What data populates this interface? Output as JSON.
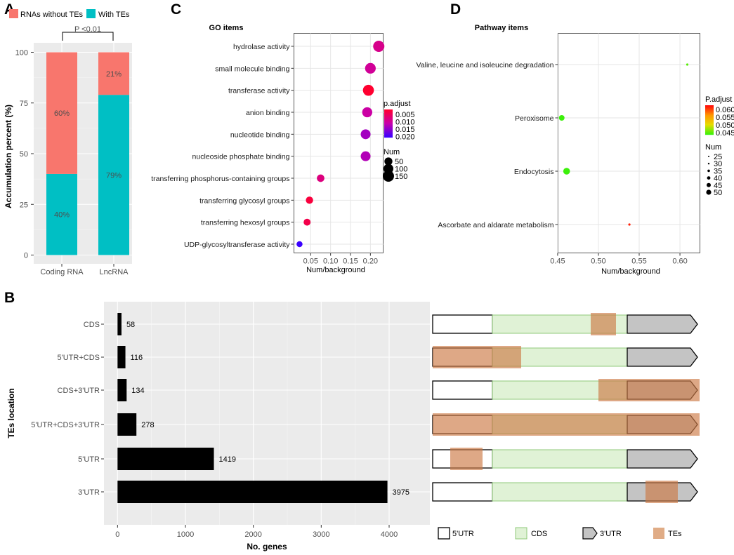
{
  "panels": {
    "a": "A",
    "b": "B",
    "c": "C",
    "d": "D"
  },
  "colors": {
    "no_te": "#f8766d",
    "te": "#00bfc4",
    "cds_fill": "#e0f2d6",
    "cds_stroke": "#8fc97a",
    "utr3_fill": "#c4c4c4",
    "te_rect": "#d48a5a"
  },
  "chart_data": [
    {
      "id": "A",
      "type": "bar",
      "stacked": true,
      "categories": [
        "Coding RNA",
        "LncRNA"
      ],
      "series": [
        {
          "name": "With TEs",
          "values": [
            40,
            79
          ],
          "labels": [
            "40%",
            "79%"
          ]
        },
        {
          "name": "RNAs without TEs",
          "values": [
            60,
            21
          ],
          "labels": [
            "60%",
            "21%"
          ]
        }
      ],
      "legend": [
        "RNAs without TEs",
        "With TEs"
      ],
      "ylabel": "Accumulation percent (%)",
      "ylim": [
        0,
        100
      ],
      "yticks": [
        "0",
        "25",
        "50",
        "75",
        "100"
      ],
      "annotation": "P <0.01"
    },
    {
      "id": "C",
      "type": "scatter",
      "title": "GO items",
      "xlabel": "Num/background",
      "xticks": [
        "0.05",
        "0.10",
        "0.15",
        "0.20"
      ],
      "xlim": [
        0.008,
        0.232
      ],
      "items": [
        "hydrolase activity",
        "small molecule binding",
        "transferase activity",
        "anion binding",
        "nucleotide binding",
        "nucleoside phosphate binding",
        "transferring phosphorus-containing groups",
        "transferring glycosyl groups",
        "transferring hexosyl groups",
        "UDP-glycosyltransferase activity"
      ],
      "x": [
        0.221,
        0.2,
        0.195,
        0.192,
        0.188,
        0.188,
        0.075,
        0.047,
        0.041,
        0.022
      ],
      "num": [
        150,
        128,
        140,
        108,
        100,
        100,
        40,
        35,
        30,
        15
      ],
      "padj": [
        0.0095,
        0.0105,
        0.0025,
        0.0115,
        0.0145,
        0.0135,
        0.0085,
        0.0035,
        0.0045,
        0.0215
      ],
      "color_title": "p.adjust",
      "color_ticks": [
        "0.005",
        "0.010",
        "0.015",
        "0.020"
      ],
      "size_title": "Num",
      "size_ticks": [
        "50",
        "100",
        "150"
      ]
    },
    {
      "id": "D",
      "type": "scatter",
      "title": "Pathway items",
      "xlabel": "Num/background",
      "xticks": [
        "0.45",
        "0.50",
        "0.55",
        "0.60"
      ],
      "xlim": [
        0.4505,
        0.6245
      ],
      "items": [
        "Valine, leucine and isoleucine degradation",
        "Peroxisome",
        "Endocytosis",
        "Ascorbate and aldarate metabolism"
      ],
      "x": [
        0.609,
        0.455,
        0.461,
        0.538
      ],
      "num": [
        25,
        45,
        50,
        27
      ],
      "padj": [
        0.044,
        0.043,
        0.043,
        0.061
      ],
      "color_title": "P.adjust",
      "color_ticks": [
        "0.060",
        "0.055",
        "0.050",
        "0.045"
      ],
      "size_title": "Num",
      "size_ticks": [
        "25",
        "30",
        "35",
        "40",
        "45",
        "50"
      ]
    },
    {
      "id": "B",
      "type": "bar",
      "orientation": "horizontal",
      "categories": [
        "CDS",
        "5'UTR+CDS",
        "CDS+3'UTR",
        "5'UTR+CDS+3'UTR",
        "5'UTR",
        "3'UTR"
      ],
      "values": [
        58,
        116,
        134,
        278,
        1419,
        3975
      ],
      "labels": [
        "58",
        "116",
        "134",
        "278",
        "1419",
        "3975"
      ],
      "xlabel": "No. genes",
      "ylabel": "TEs location",
      "xlim": [
        -200,
        4600
      ],
      "xticks": [
        "0",
        "1000",
        "2000",
        "3000",
        "4000"
      ]
    }
  ],
  "diagram": {
    "legend": [
      "5'UTR",
      "CDS",
      "3'UTR",
      "TEs"
    ]
  }
}
